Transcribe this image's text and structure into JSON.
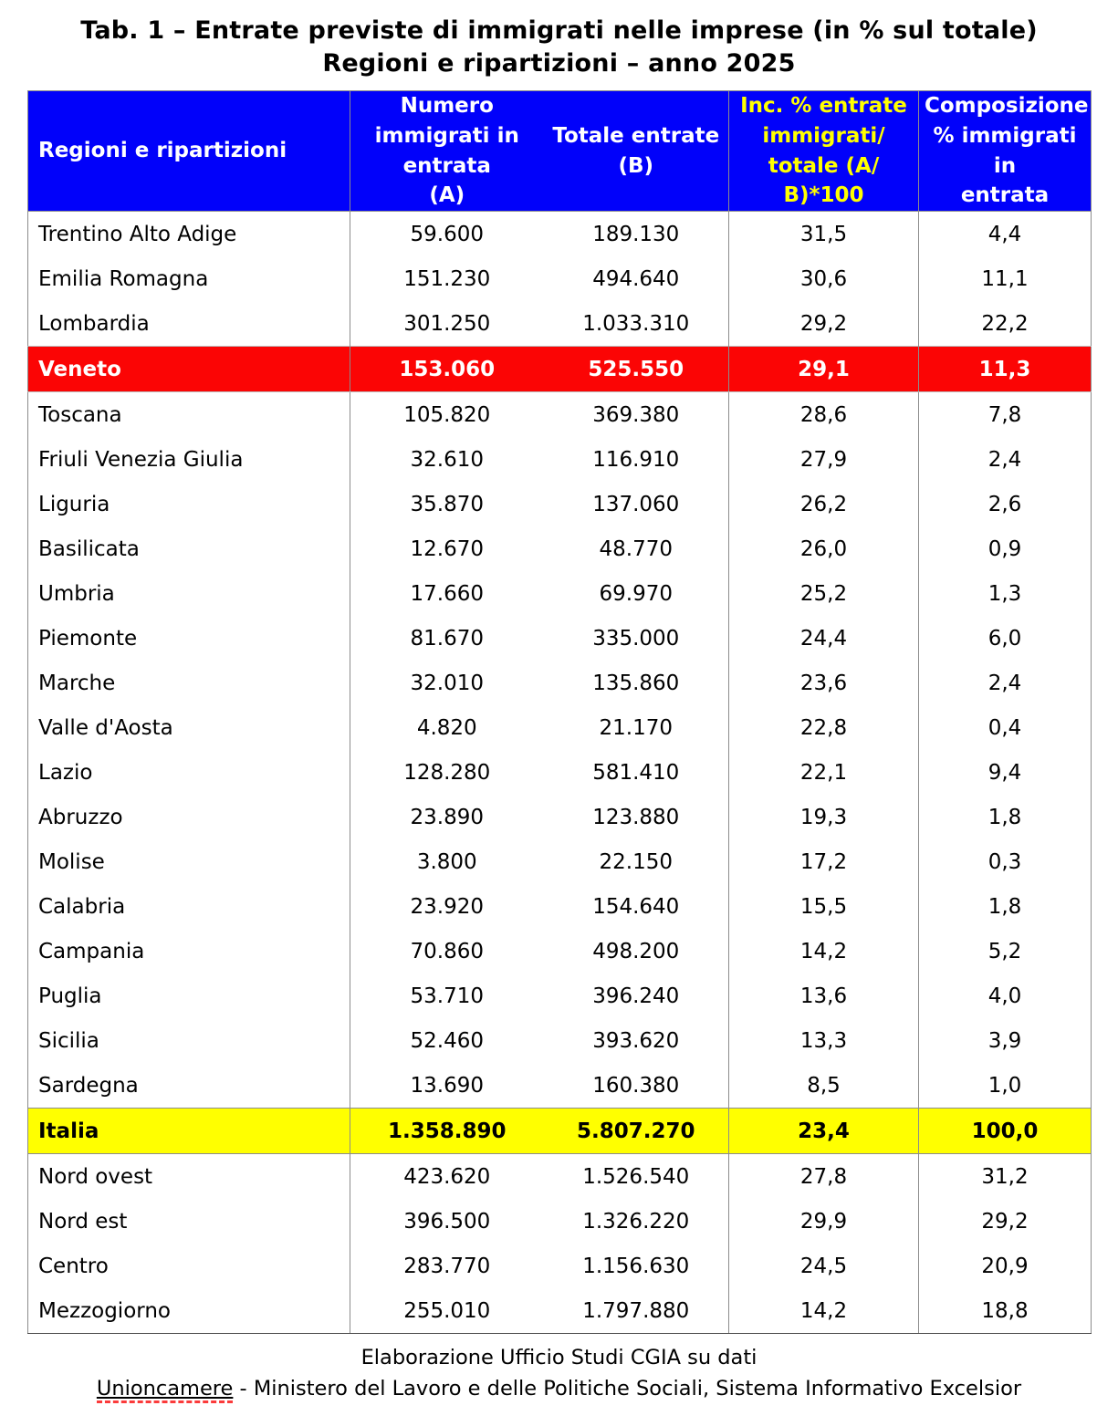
{
  "title": {
    "line1": "Tab. 1 – Entrate previste di immigrati nelle imprese (in % sul totale)",
    "line2": "Regioni e ripartizioni – anno 2025"
  },
  "colors": {
    "header_bg": "#0101fa",
    "header_text": "#ffffff",
    "header_accent_text": "#ffff00",
    "highlight_red_row": "#fb0505",
    "highlight_yellow_row": "#ffff00",
    "grid_border": "#8c8c8c"
  },
  "table": {
    "display_headers": [
      "Regioni e ripartizioni",
      "Numero\nimmigrati in\nentrata\n(A)",
      "Totale entrate\n(B)",
      "Inc. % entrate\nimmigrati/\ntotale (A/\nB)*100",
      "Composizione\n% immigrati in\nentrata"
    ]
  },
  "chart_data": {
    "type": "table",
    "columns": [
      "Regioni e ripartizioni",
      "Numero immigrati in entrata (A)",
      "Totale entrate (B)",
      "Inc. % entrate immigrati/totale (A/B)*100",
      "Composizione % immigrati in entrata"
    ],
    "rows": [
      {
        "cells": [
          "Trentino Alto Adige",
          "59.600",
          "189.130",
          "31,5",
          "4,4"
        ],
        "highlight": ""
      },
      {
        "cells": [
          "Emilia Romagna",
          "151.230",
          "494.640",
          "30,6",
          "11,1"
        ],
        "highlight": ""
      },
      {
        "cells": [
          "Lombardia",
          "301.250",
          "1.033.310",
          "29,2",
          "22,2"
        ],
        "highlight": ""
      },
      {
        "cells": [
          "Veneto",
          "153.060",
          "525.550",
          "29,1",
          "11,3"
        ],
        "highlight": "red"
      },
      {
        "cells": [
          "Toscana",
          "105.820",
          "369.380",
          "28,6",
          "7,8"
        ],
        "highlight": ""
      },
      {
        "cells": [
          "Friuli Venezia Giulia",
          "32.610",
          "116.910",
          "27,9",
          "2,4"
        ],
        "highlight": ""
      },
      {
        "cells": [
          "Liguria",
          "35.870",
          "137.060",
          "26,2",
          "2,6"
        ],
        "highlight": ""
      },
      {
        "cells": [
          "Basilicata",
          "12.670",
          "48.770",
          "26,0",
          "0,9"
        ],
        "highlight": ""
      },
      {
        "cells": [
          "Umbria",
          "17.660",
          "69.970",
          "25,2",
          "1,3"
        ],
        "highlight": ""
      },
      {
        "cells": [
          "Piemonte",
          "81.670",
          "335.000",
          "24,4",
          "6,0"
        ],
        "highlight": ""
      },
      {
        "cells": [
          "Marche",
          "32.010",
          "135.860",
          "23,6",
          "2,4"
        ],
        "highlight": ""
      },
      {
        "cells": [
          "Valle d'Aosta",
          "4.820",
          "21.170",
          "22,8",
          "0,4"
        ],
        "highlight": ""
      },
      {
        "cells": [
          "Lazio",
          "128.280",
          "581.410",
          "22,1",
          "9,4"
        ],
        "highlight": ""
      },
      {
        "cells": [
          "Abruzzo",
          "23.890",
          "123.880",
          "19,3",
          "1,8"
        ],
        "highlight": ""
      },
      {
        "cells": [
          "Molise",
          "3.800",
          "22.150",
          "17,2",
          "0,3"
        ],
        "highlight": ""
      },
      {
        "cells": [
          "Calabria",
          "23.920",
          "154.640",
          "15,5",
          "1,8"
        ],
        "highlight": ""
      },
      {
        "cells": [
          "Campania",
          "70.860",
          "498.200",
          "14,2",
          "5,2"
        ],
        "highlight": ""
      },
      {
        "cells": [
          "Puglia",
          "53.710",
          "396.240",
          "13,6",
          "4,0"
        ],
        "highlight": ""
      },
      {
        "cells": [
          "Sicilia",
          "52.460",
          "393.620",
          "13,3",
          "3,9"
        ],
        "highlight": ""
      },
      {
        "cells": [
          "Sardegna",
          "13.690",
          "160.380",
          "8,5",
          "1,0"
        ],
        "highlight": ""
      },
      {
        "cells": [
          "Italia",
          "1.358.890",
          "5.807.270",
          "23,4",
          "100,0"
        ],
        "highlight": "yellow"
      },
      {
        "cells": [
          "Nord ovest",
          "423.620",
          "1.526.540",
          "27,8",
          "31,2"
        ],
        "highlight": ""
      },
      {
        "cells": [
          "Nord est",
          "396.500",
          "1.326.220",
          "29,9",
          "29,2"
        ],
        "highlight": ""
      },
      {
        "cells": [
          "Centro",
          "283.770",
          "1.156.630",
          "24,5",
          "20,9"
        ],
        "highlight": ""
      },
      {
        "cells": [
          "Mezzogiorno",
          "255.010",
          "1.797.880",
          "14,2",
          "18,8"
        ],
        "highlight": ""
      }
    ]
  },
  "footer": {
    "line1": "Elaborazione Ufficio Studi CGIA su dati",
    "unioncamere": "Unioncamere",
    "line2_rest": " - Ministero del Lavoro e delle Politiche Sociali, Sistema Informativo Excelsior"
  }
}
